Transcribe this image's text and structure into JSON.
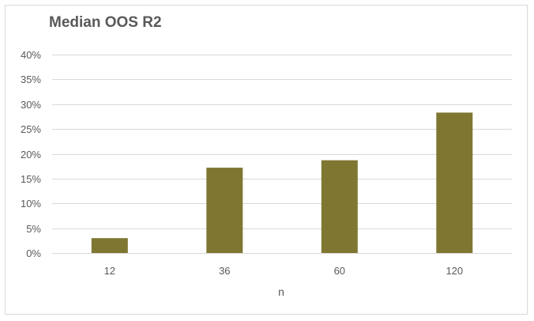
{
  "chart_data": {
    "type": "bar",
    "title": "Median OOS R2",
    "xlabel": "n",
    "ylabel": "",
    "categories": [
      "12",
      "36",
      "60",
      "120"
    ],
    "values": [
      3.0,
      17.2,
      18.7,
      28.3
    ],
    "value_unit": "%",
    "ylim": [
      0,
      40
    ],
    "yticks": [
      0,
      5,
      10,
      15,
      20,
      25,
      30,
      35,
      40
    ],
    "ytick_labels": [
      "0%",
      "5%",
      "10%",
      "15%",
      "20%",
      "25%",
      "30%",
      "35%",
      "40%"
    ],
    "grid": true,
    "legend": "none",
    "bar_color": "#7f7632",
    "grid_color": "#d9d9d9"
  }
}
